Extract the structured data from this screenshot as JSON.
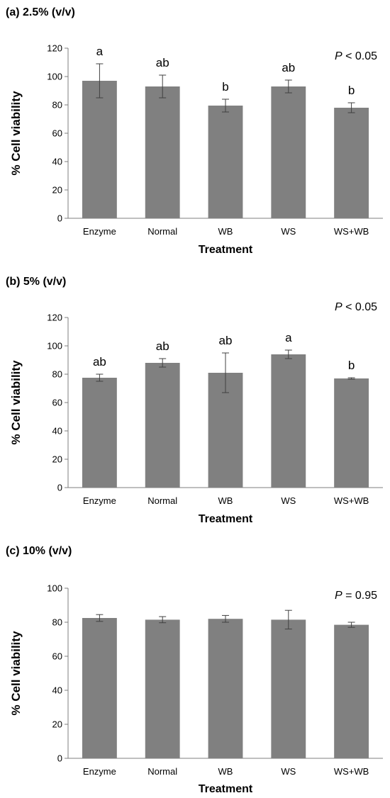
{
  "chart_data": [
    {
      "type": "bar",
      "title": "(a) 2.5% (v/v)",
      "p_label": "P",
      "p_value": "< 0.05",
      "xlabel": "Treatment",
      "ylabel": "% Cell viability",
      "categories": [
        "Enzyme",
        "Normal",
        "WB",
        "WS",
        "WS+WB"
      ],
      "values": [
        97,
        93,
        79.5,
        93,
        78
      ],
      "errors": [
        12,
        8,
        4.5,
        4.5,
        3.5
      ],
      "significance": [
        "a",
        "ab",
        "b",
        "ab",
        "b"
      ],
      "ylim": [
        0,
        120
      ],
      "yticks": [
        0,
        20,
        40,
        60,
        80,
        100,
        120
      ],
      "bar_color": "#808080",
      "grid": false
    },
    {
      "type": "bar",
      "title": "(b) 5% (v/v)",
      "p_label": "P",
      "p_value": "< 0.05",
      "xlabel": "Treatment",
      "ylabel": "% Cell viability",
      "categories": [
        "Enzyme",
        "Normal",
        "WB",
        "WS",
        "WS+WB"
      ],
      "values": [
        77.5,
        88,
        81,
        94,
        77
      ],
      "errors": [
        2.5,
        3,
        14,
        3,
        0.5
      ],
      "significance": [
        "ab",
        "ab",
        "ab",
        "a",
        "b"
      ],
      "ylim": [
        0,
        120
      ],
      "yticks": [
        0,
        20,
        40,
        60,
        80,
        100,
        120
      ],
      "bar_color": "#808080",
      "grid": false
    },
    {
      "type": "bar",
      "title": "(c) 10% (v/v)",
      "p_label": "P",
      "p_value": "= 0.95",
      "xlabel": "Treatment",
      "ylabel": "% Cell viability",
      "categories": [
        "Enzyme",
        "Normal",
        "WB",
        "WS",
        "WS+WB"
      ],
      "values": [
        82.5,
        81.5,
        82,
        81.5,
        78.5
      ],
      "errors": [
        2,
        1.8,
        2,
        5.5,
        1.5
      ],
      "significance": [
        "",
        "",
        "",
        "",
        ""
      ],
      "ylim": [
        0,
        100
      ],
      "yticks": [
        0,
        20,
        40,
        60,
        80,
        100
      ],
      "bar_color": "#808080",
      "grid": false
    }
  ]
}
